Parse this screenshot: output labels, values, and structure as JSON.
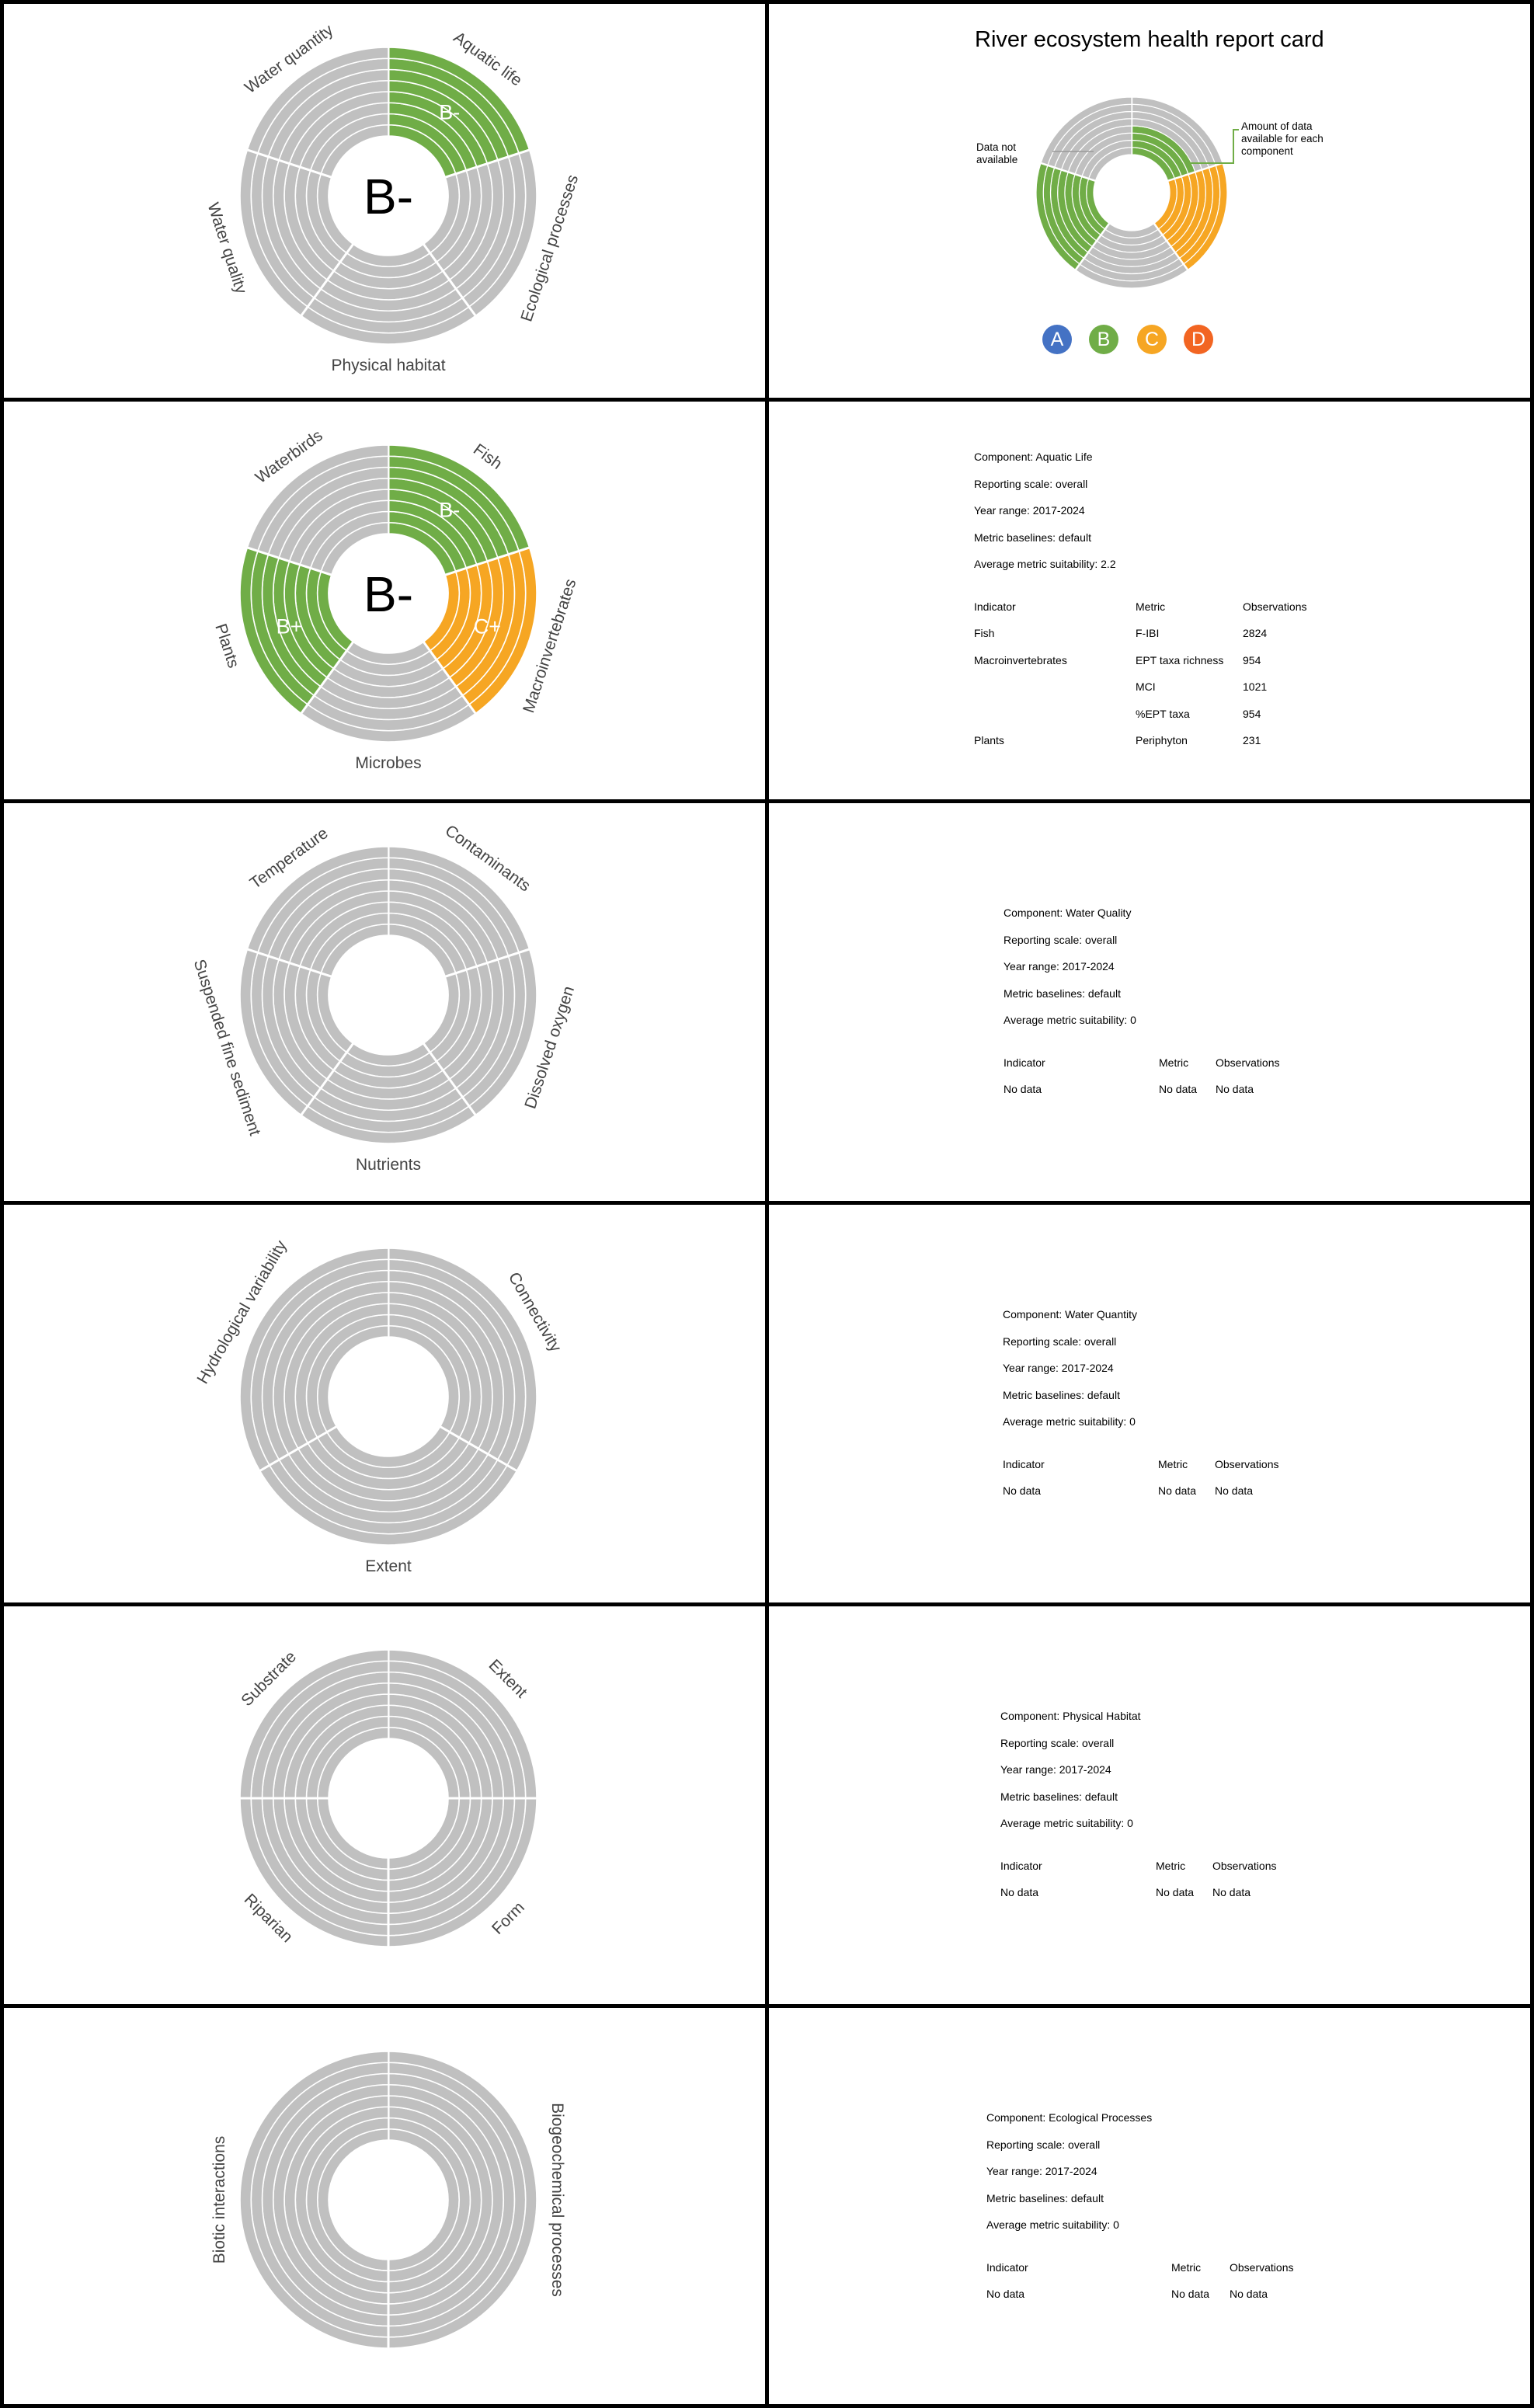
{
  "report_title": "River ecosystem health report card",
  "colors": {
    "no_data": "#c0c0c0",
    "grade_A": "#4472c4",
    "grade_B": "#70ad47",
    "grade_C": "#f6a623",
    "grade_D": "#f26522",
    "ring_line": "#ffffff",
    "annotation_line": "#70ad47"
  },
  "legend": {
    "data_not_available": "Data not available",
    "amount_of_data": "Amount of data available for each component",
    "grades": [
      "A",
      "B",
      "C",
      "D"
    ]
  },
  "chart_data": [
    {
      "type": "sunburst",
      "name": "overall",
      "center_grade": "B-",
      "rings": 8,
      "segments": [
        {
          "label": "Aquatic life",
          "grade": "B-",
          "filled_rings": 8
        },
        {
          "label": "Ecological processes",
          "grade": null,
          "filled_rings": 0
        },
        {
          "label": "Physical habitat",
          "grade": null,
          "filled_rings": 0
        },
        {
          "label": "Water quality",
          "grade": null,
          "filled_rings": 0
        },
        {
          "label": "Water quantity",
          "grade": null,
          "filled_rings": 0
        }
      ]
    },
    {
      "type": "sunburst",
      "name": "aquatic_life",
      "center_grade": "B-",
      "rings": 8,
      "segments": [
        {
          "label": "Fish",
          "grade": "B-",
          "filled_rings": 8
        },
        {
          "label": "Macroinvertebrates",
          "grade": "C+",
          "filled_rings": 8
        },
        {
          "label": "Microbes",
          "grade": null,
          "filled_rings": 0
        },
        {
          "label": "Plants",
          "grade": "B+",
          "filled_rings": 8
        },
        {
          "label": "Waterbirds",
          "grade": null,
          "filled_rings": 0
        }
      ]
    },
    {
      "type": "sunburst",
      "name": "water_quality",
      "center_grade": "",
      "rings": 8,
      "segments": [
        {
          "label": "Contaminants",
          "grade": null,
          "filled_rings": 0
        },
        {
          "label": "Dissolved oxygen",
          "grade": null,
          "filled_rings": 0
        },
        {
          "label": "Nutrients",
          "grade": null,
          "filled_rings": 0
        },
        {
          "label": "Suspended fine sediment",
          "grade": null,
          "filled_rings": 0
        },
        {
          "label": "Temperature",
          "grade": null,
          "filled_rings": 0
        }
      ]
    },
    {
      "type": "sunburst",
      "name": "water_quantity",
      "center_grade": "",
      "rings": 8,
      "segments": [
        {
          "label": "Connectivity",
          "grade": null,
          "filled_rings": 0
        },
        {
          "label": "Extent",
          "grade": null,
          "filled_rings": 0
        },
        {
          "label": "Hydrological variability",
          "grade": null,
          "filled_rings": 0
        }
      ]
    },
    {
      "type": "sunburst",
      "name": "physical_habitat",
      "center_grade": "",
      "rings": 8,
      "segments": [
        {
          "label": "Extent",
          "grade": null,
          "filled_rings": 0
        },
        {
          "label": "Form",
          "grade": null,
          "filled_rings": 0
        },
        {
          "label": "Riparian",
          "grade": null,
          "filled_rings": 0
        },
        {
          "label": "Substrate",
          "grade": null,
          "filled_rings": 0
        }
      ]
    },
    {
      "type": "sunburst",
      "name": "ecological_processes",
      "center_grade": "",
      "rings": 8,
      "segments": [
        {
          "label": "Biogeochemical processes",
          "grade": null,
          "filled_rings": 0
        },
        {
          "label": "Biotic interactions",
          "grade": null,
          "filled_rings": 0
        }
      ]
    },
    {
      "type": "sunburst",
      "name": "legend_example",
      "center_grade": "",
      "rings": 8,
      "segments": [
        {
          "grade": "B",
          "filled_rings": 4
        },
        {
          "grade": "C",
          "filled_rings": 8
        },
        {
          "grade": null,
          "filled_rings": 0
        },
        {
          "grade": "B",
          "filled_rings": 8
        },
        {
          "grade": null,
          "filled_rings": 0
        }
      ]
    }
  ],
  "info_panels": [
    {
      "component": "Component: Aquatic Life",
      "scale": "Reporting scale: overall",
      "years": "Year range: 2017-2024",
      "baselines": "Metric baselines: default",
      "suitability": "Average metric suitability: 2.2",
      "headers": [
        "Indicator",
        "Metric",
        "Observations"
      ],
      "rows": [
        [
          "Fish",
          "F-IBI",
          "2824"
        ],
        [
          "Macroinvertebrates",
          "EPT taxa richness",
          "954"
        ],
        [
          "",
          "MCI",
          "1021"
        ],
        [
          "",
          "%EPT taxa",
          "954"
        ],
        [
          "Plants",
          "Periphyton",
          "231"
        ]
      ]
    },
    {
      "component": "Component: Water Quality",
      "scale": "Reporting scale: overall",
      "years": "Year range: 2017-2024",
      "baselines": "Metric baselines: default",
      "suitability": "Average metric suitability: 0",
      "headers": [
        "Indicator",
        "Metric",
        "Observations"
      ],
      "rows": [
        [
          "No data",
          "No data",
          "No data"
        ]
      ]
    },
    {
      "component": "Component: Water Quantity",
      "scale": "Reporting scale: overall",
      "years": "Year range: 2017-2024",
      "baselines": "Metric baselines: default",
      "suitability": "Average metric suitability: 0",
      "headers": [
        "Indicator",
        "Metric",
        "Observations"
      ],
      "rows": [
        [
          "No data",
          "No data",
          "No data"
        ]
      ]
    },
    {
      "component": "Component: Physical Habitat",
      "scale": "Reporting scale: overall",
      "years": "Year range: 2017-2024",
      "baselines": "Metric baselines: default",
      "suitability": "Average metric suitability: 0",
      "headers": [
        "Indicator",
        "Metric",
        "Observations"
      ],
      "rows": [
        [
          "No data",
          "No data",
          "No data"
        ]
      ]
    },
    {
      "component": "Component: Ecological Processes",
      "scale": "Reporting scale: overall",
      "years": "Year range: 2017-2024",
      "baselines": "Metric baselines: default",
      "suitability": "Average metric suitability: 0",
      "headers": [
        "Indicator",
        "Metric",
        "Observations"
      ],
      "rows": [
        [
          "No data",
          "No data",
          "No data"
        ]
      ]
    }
  ]
}
